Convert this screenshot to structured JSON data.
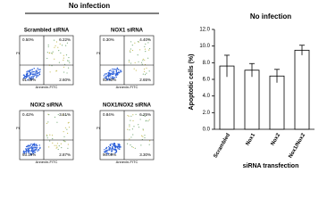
{
  "flow_figure": {
    "title": "No infection",
    "x_label": "Annexin-FITC",
    "y_label": "PI",
    "panels": [
      {
        "label": "Scrambled siRNA",
        "ul": "0.50%",
        "ur": "6.22%",
        "ll": "91.40%",
        "lr": "2.60%"
      },
      {
        "label": "NOX1 siRNA",
        "ul": "0.30%",
        "ur": "4.40%",
        "ll": "92.40%",
        "lr": "2.65%"
      },
      {
        "label": "NOX2 siRNA",
        "ul": "0.42%",
        "ur": "3.51%",
        "ll": "93.19%",
        "lr": "2.87%"
      },
      {
        "label": "NOX1/NOX2 siRNA",
        "ul": "0.84%",
        "ur": "6.25%",
        "ll": "90.09%",
        "lr": "3.30%"
      }
    ]
  },
  "chart_data": {
    "type": "bar",
    "title": "No infection",
    "y_label": "Apoptotic cells (%)",
    "x_label": "siRNA transfection",
    "categories": [
      "Scrambled",
      "Nox1",
      "Nox2",
      "Nox1/Nox2"
    ],
    "values": [
      7.6,
      7.1,
      6.4,
      9.5
    ],
    "errors": [
      1.3,
      0.8,
      0.8,
      0.6
    ],
    "color": "#ffffff",
    "ylim": [
      0,
      12
    ],
    "yticks": [
      {
        "value": 0,
        "label": "0.0"
      },
      {
        "value": 2,
        "label": "2.0"
      },
      {
        "value": 4,
        "label": "4.0"
      },
      {
        "value": 6,
        "label": "6.0"
      },
      {
        "value": 8,
        "label": "8.0"
      },
      {
        "value": 10,
        "label": "10.0"
      },
      {
        "value": 12,
        "label": "12.0"
      }
    ]
  }
}
